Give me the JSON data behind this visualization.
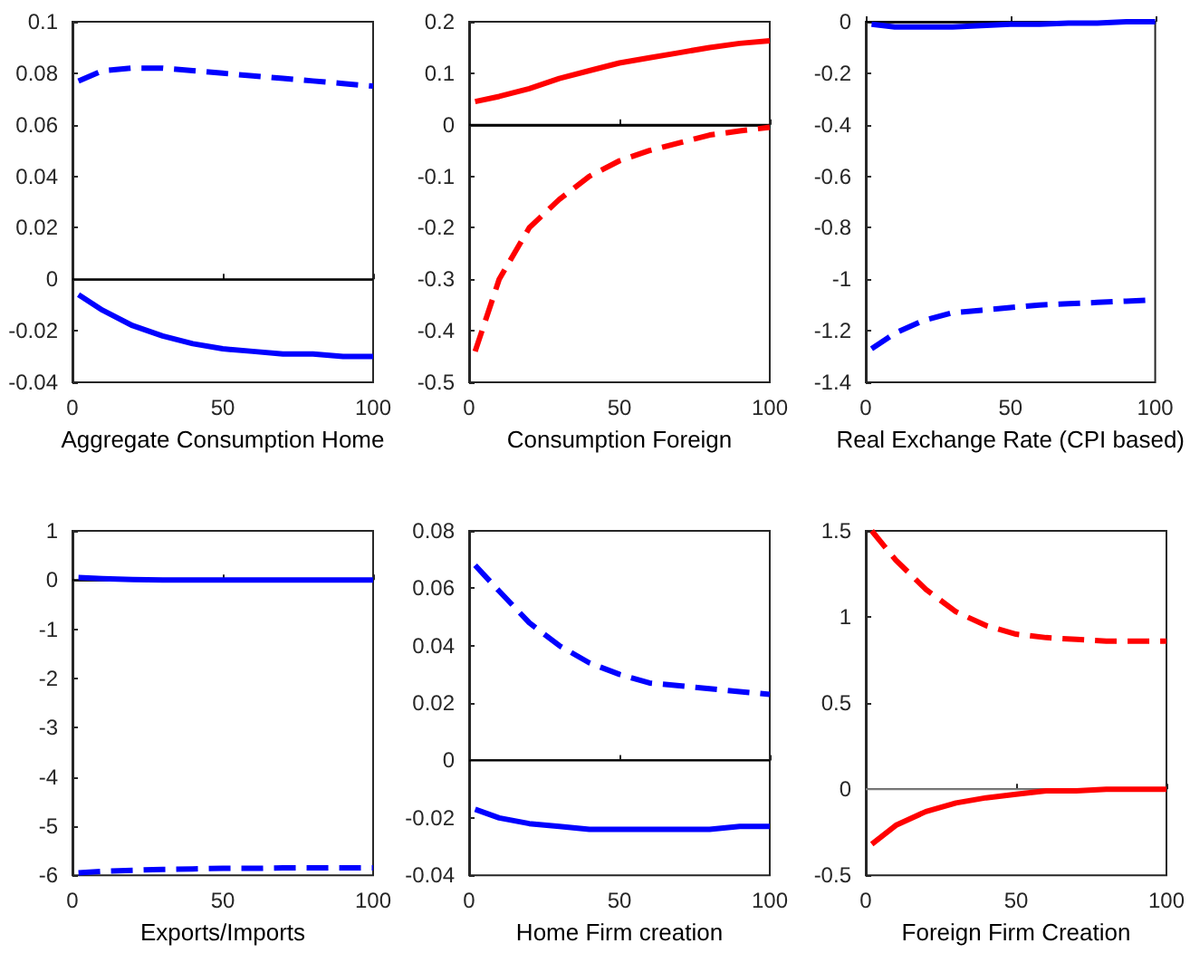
{
  "chart_data": [
    {
      "type": "line",
      "xlabel": "Aggregate Consumption Home",
      "xlim": [
        0,
        100
      ],
      "xticks": [
        0,
        50,
        100
      ],
      "ylim": [
        -0.04,
        0.1
      ],
      "yticks": [
        -0.04,
        -0.02,
        0,
        0.02,
        0.04,
        0.06,
        0.08,
        0.1
      ],
      "ref_lines": [
        {
          "axis": "y",
          "value": 0,
          "color": "#000000"
        }
      ],
      "series": [
        {
          "color": "#0000ff",
          "line_style": "solid",
          "x": [
            2,
            10,
            20,
            30,
            40,
            50,
            60,
            70,
            80,
            90,
            100
          ],
          "values": [
            -0.006,
            -0.012,
            -0.018,
            -0.022,
            -0.025,
            -0.027,
            -0.028,
            -0.029,
            -0.029,
            -0.03,
            -0.03
          ]
        },
        {
          "color": "#0000ff",
          "line_style": "dashed",
          "x": [
            2,
            10,
            20,
            30,
            40,
            50,
            60,
            70,
            80,
            90,
            100
          ],
          "values": [
            0.077,
            0.081,
            0.082,
            0.082,
            0.081,
            0.08,
            0.079,
            0.078,
            0.077,
            0.076,
            0.075
          ]
        }
      ]
    },
    {
      "type": "line",
      "xlabel": "Consumption Foreign",
      "xlim": [
        0,
        100
      ],
      "xticks": [
        0,
        50,
        100
      ],
      "ylim": [
        -0.5,
        0.2
      ],
      "yticks": [
        -0.5,
        -0.4,
        -0.3,
        -0.2,
        -0.1,
        0,
        0.1,
        0.2
      ],
      "ref_lines": [
        {
          "axis": "y",
          "value": 0,
          "color": "#000000"
        }
      ],
      "series": [
        {
          "color": "#ff0000",
          "line_style": "solid",
          "x": [
            2,
            10,
            20,
            30,
            40,
            50,
            60,
            70,
            80,
            90,
            100
          ],
          "values": [
            0.045,
            0.055,
            0.07,
            0.09,
            0.105,
            0.12,
            0.13,
            0.14,
            0.15,
            0.158,
            0.163
          ]
        },
        {
          "color": "#ff0000",
          "line_style": "dashed",
          "x": [
            2,
            10,
            20,
            30,
            40,
            50,
            60,
            70,
            80,
            90,
            100
          ],
          "values": [
            -0.44,
            -0.3,
            -0.2,
            -0.145,
            -0.1,
            -0.07,
            -0.05,
            -0.035,
            -0.02,
            -0.012,
            -0.005
          ]
        }
      ]
    },
    {
      "type": "line",
      "xlabel": "Real Exchange Rate (CPI based)",
      "xlim": [
        0,
        100
      ],
      "xticks": [
        0,
        50,
        100
      ],
      "ylim": [
        -1.4,
        0
      ],
      "yticks": [
        -1.4,
        -1.2,
        -1,
        -0.8,
        -0.6,
        -0.4,
        -0.2,
        0
      ],
      "ref_lines": [
        {
          "axis": "y",
          "value": 0,
          "color": "#000000"
        }
      ],
      "series": [
        {
          "color": "#0000ff",
          "line_style": "solid",
          "x": [
            2,
            10,
            20,
            30,
            40,
            50,
            60,
            70,
            80,
            90,
            100
          ],
          "values": [
            -0.01,
            -0.02,
            -0.02,
            -0.02,
            -0.015,
            -0.01,
            -0.01,
            -0.005,
            -0.005,
            0,
            0
          ]
        },
        {
          "color": "#0000ff",
          "line_style": "dashed",
          "x": [
            2,
            10,
            20,
            30,
            40,
            50,
            60,
            70,
            80,
            90,
            100
          ],
          "values": [
            -1.27,
            -1.21,
            -1.16,
            -1.13,
            -1.12,
            -1.11,
            -1.1,
            -1.095,
            -1.09,
            -1.085,
            -1.08
          ]
        }
      ]
    },
    {
      "type": "line",
      "xlabel": "Exports/Imports",
      "xlim": [
        0,
        100
      ],
      "xticks": [
        0,
        50,
        100
      ],
      "ylim": [
        -6,
        1
      ],
      "yticks": [
        -6,
        -5,
        -4,
        -3,
        -2,
        -1,
        0,
        1
      ],
      "ref_lines": [
        {
          "axis": "y",
          "value": 0,
          "color": "#000000"
        }
      ],
      "series": [
        {
          "color": "#0000ff",
          "line_style": "solid",
          "x": [
            2,
            10,
            20,
            30,
            40,
            50,
            60,
            70,
            80,
            90,
            100
          ],
          "values": [
            0.05,
            0.03,
            0.01,
            0,
            0,
            0,
            0,
            0,
            0,
            0,
            0
          ]
        },
        {
          "color": "#0000ff",
          "line_style": "dashed",
          "x": [
            2,
            10,
            20,
            30,
            40,
            50,
            60,
            70,
            80,
            90,
            100
          ],
          "values": [
            -5.95,
            -5.92,
            -5.9,
            -5.88,
            -5.87,
            -5.86,
            -5.86,
            -5.85,
            -5.85,
            -5.85,
            -5.85
          ]
        }
      ]
    },
    {
      "type": "line",
      "xlabel": "Home Firm creation",
      "xlim": [
        0,
        100
      ],
      "xticks": [
        0,
        50,
        100
      ],
      "ylim": [
        -0.04,
        0.08
      ],
      "yticks": [
        -0.04,
        -0.02,
        0,
        0.02,
        0.04,
        0.06,
        0.08
      ],
      "ref_lines": [
        {
          "axis": "y",
          "value": 0,
          "color": "#000000"
        }
      ],
      "series": [
        {
          "color": "#0000ff",
          "line_style": "solid",
          "x": [
            2,
            10,
            20,
            30,
            40,
            50,
            60,
            70,
            80,
            90,
            100
          ],
          "values": [
            -0.017,
            -0.02,
            -0.022,
            -0.023,
            -0.024,
            -0.024,
            -0.024,
            -0.024,
            -0.024,
            -0.023,
            -0.023
          ]
        },
        {
          "color": "#0000ff",
          "line_style": "dashed",
          "x": [
            2,
            10,
            20,
            30,
            40,
            50,
            60,
            70,
            80,
            90,
            100
          ],
          "values": [
            0.068,
            0.059,
            0.048,
            0.04,
            0.034,
            0.03,
            0.027,
            0.026,
            0.025,
            0.024,
            0.023
          ]
        }
      ]
    },
    {
      "type": "line",
      "xlabel": "Foreign Firm Creation",
      "xlim": [
        0,
        100
      ],
      "xticks": [
        0,
        50,
        100
      ],
      "ylim": [
        -0.5,
        1.5
      ],
      "yticks": [
        -0.5,
        0,
        0.5,
        1,
        1.5
      ],
      "ref_lines": [
        {
          "axis": "y",
          "value": 0,
          "color": "#808080"
        }
      ],
      "series": [
        {
          "color": "#ff0000",
          "line_style": "solid",
          "x": [
            2,
            10,
            20,
            30,
            40,
            50,
            60,
            70,
            80,
            90,
            100
          ],
          "values": [
            -0.32,
            -0.21,
            -0.13,
            -0.08,
            -0.05,
            -0.03,
            -0.01,
            -0.01,
            0,
            0,
            0
          ]
        },
        {
          "color": "#ff0000",
          "line_style": "dashed",
          "x": [
            2,
            10,
            20,
            30,
            40,
            50,
            60,
            70,
            80,
            90,
            100
          ],
          "values": [
            1.5,
            1.33,
            1.16,
            1.03,
            0.95,
            0.9,
            0.88,
            0.87,
            0.86,
            0.86,
            0.86
          ]
        }
      ]
    }
  ]
}
